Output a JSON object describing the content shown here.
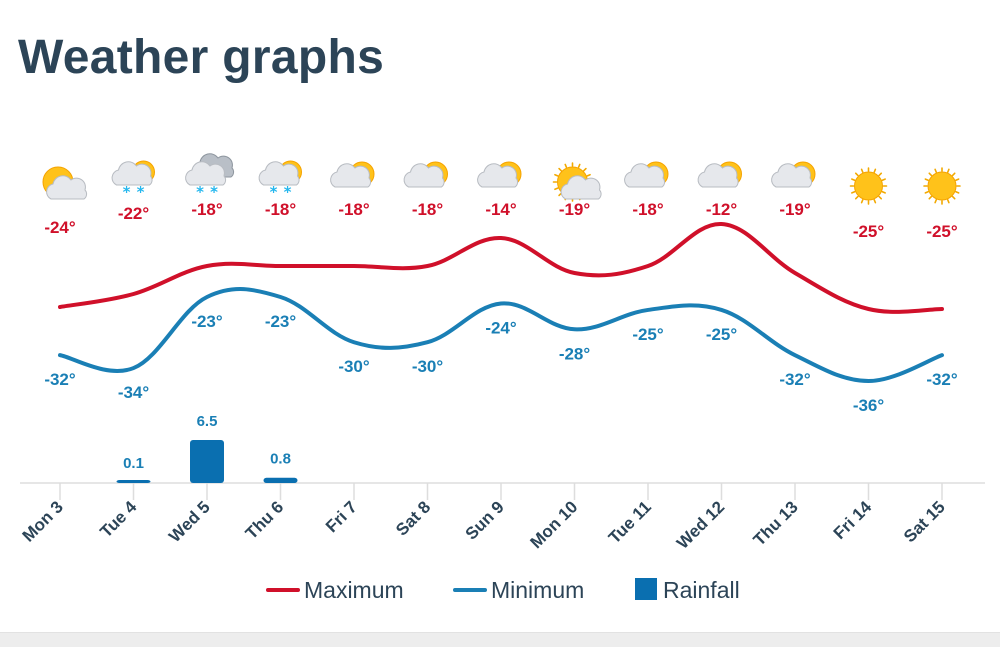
{
  "page": {
    "title": "Weather graphs"
  },
  "colors": {
    "max": "#d0102a",
    "min": "#1a7fb5",
    "rain": "#0a6fb0",
    "axis_text": "#2c4457",
    "grid": "#dddddd"
  },
  "legend": [
    {
      "name": "Maximum",
      "color": "#d0102a",
      "shape": "line"
    },
    {
      "name": "Minimum",
      "color": "#1a7fb5",
      "shape": "line"
    },
    {
      "name": "Rainfall",
      "color": "#0a6fb0",
      "shape": "square"
    }
  ],
  "chart_data": {
    "type": "line",
    "categories": [
      "Mon 3",
      "Tue 4",
      "Wed 5",
      "Thu 6",
      "Fri 7",
      "Sat 8",
      "Sun 9",
      "Mon 10",
      "Tue 11",
      "Wed 12",
      "Thu 13",
      "Fri 14",
      "Sat 15"
    ],
    "icons": [
      "partly-cloudy-icon",
      "partly-cloudy-snow-icon",
      "cloudy-snow-icon",
      "partly-cloudy-snow-icon",
      "partly-cloudy-icon",
      "partly-cloudy-icon",
      "partly-cloudy-icon",
      "partly-cloudy-icon",
      "partly-cloudy-icon",
      "partly-cloudy-icon",
      "partly-cloudy-icon",
      "sunny-icon",
      "sunny-icon"
    ],
    "series": [
      {
        "name": "Maximum",
        "values": [
          -24,
          -22,
          -18,
          -18,
          -18,
          -18,
          -14,
          -19,
          -18,
          -12,
          -19,
          -25,
          -25
        ],
        "labels": [
          "-24°",
          "-22°",
          "-18°",
          "-18°",
          "-18°",
          "-18°",
          "-14°",
          "-19°",
          "-18°",
          "-12°",
          "-19°",
          "-25°",
          "-25°"
        ]
      },
      {
        "name": "Minimum",
        "values": [
          -32,
          -34,
          -23,
          -23,
          -30,
          -30,
          -24,
          -28,
          -25,
          -25,
          -32,
          -36,
          -32
        ],
        "labels": [
          "-32°",
          "-34°",
          "-23°",
          "-23°",
          "-30°",
          "-30°",
          "-24°",
          "-28°",
          "-25°",
          "-25°",
          "-32°",
          "-36°",
          "-32°"
        ]
      },
      {
        "name": "Rainfall",
        "type": "bar",
        "values": [
          0,
          0.1,
          6.5,
          0.8,
          0,
          0,
          0,
          0,
          0,
          0,
          0,
          0,
          0
        ],
        "labels": [
          "",
          "0.1",
          "6.5",
          "0.8",
          "",
          "",
          "",
          "",
          "",
          "",
          "",
          "",
          ""
        ]
      }
    ],
    "grid": true,
    "legend_position": "bottom"
  }
}
